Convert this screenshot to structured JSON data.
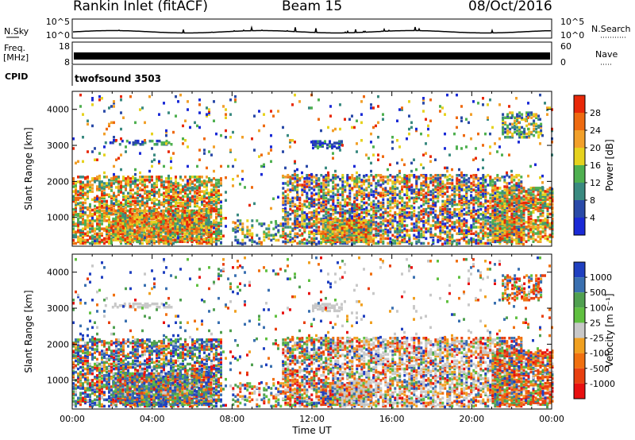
{
  "header": {
    "station": "Rankin Inlet (fitACF)",
    "beam": "Beam 15",
    "date": "08/Oct/2016"
  },
  "strip_panels": {
    "nsky_label": "N.Sky",
    "nsearch_label": "N.Search",
    "freq_label_1": "Freq.",
    "freq_label_2": "[MHz]",
    "nave_label": "Nave",
    "cpid_label": "CPID",
    "cpid_value": "twofsound 3503",
    "noise_left_ticks": [
      "10^5",
      "10^0"
    ],
    "noise_right_ticks": [
      "10^5",
      "10^0"
    ],
    "freq_ticks": [
      "18",
      "8"
    ],
    "nave_ticks": [
      "60",
      "0"
    ]
  },
  "colors": {
    "power_scale": [
      "#1a2ad6",
      "#2a4aa8",
      "#3a8a80",
      "#4fb050",
      "#e6d21e",
      "#f2a02a",
      "#ee6a10",
      "#e82808"
    ],
    "velocity_scale": [
      "#2040c0",
      "#3a70b0",
      "#50a050",
      "#60c040",
      "#c8c8c8",
      "#f0a020",
      "#f07010",
      "#e84010",
      "#e81010"
    ]
  },
  "chart_data": [
    {
      "type": "heatmap",
      "title": "",
      "xlabel": "",
      "ylabel": "Slant Range [km]",
      "x_ticks": [
        "00:00",
        "04:00",
        "08:00",
        "12:00",
        "16:00",
        "20:00",
        "00:00"
      ],
      "y_ticks": [
        1000,
        2000,
        3000,
        4000
      ],
      "ylim": [
        200,
        4500
      ],
      "colorbar": {
        "label": "Power [dB]",
        "ticks": [
          4,
          8,
          12,
          16,
          20,
          24,
          28
        ],
        "range": [
          0,
          32
        ]
      }
    },
    {
      "type": "heatmap",
      "title": "",
      "xlabel": "Time UT",
      "ylabel": "Slant Range [km]",
      "x_ticks": [
        "00:00",
        "04:00",
        "08:00",
        "12:00",
        "16:00",
        "20:00",
        "00:00"
      ],
      "y_ticks": [
        1000,
        2000,
        3000,
        4000
      ],
      "ylim": [
        200,
        4500
      ],
      "colorbar": {
        "label": "Velocity [m s⁻¹]",
        "ticks": [
          "1000",
          "500",
          "100",
          "25",
          "-25",
          "-100",
          "-500",
          "-1000"
        ]
      }
    }
  ]
}
